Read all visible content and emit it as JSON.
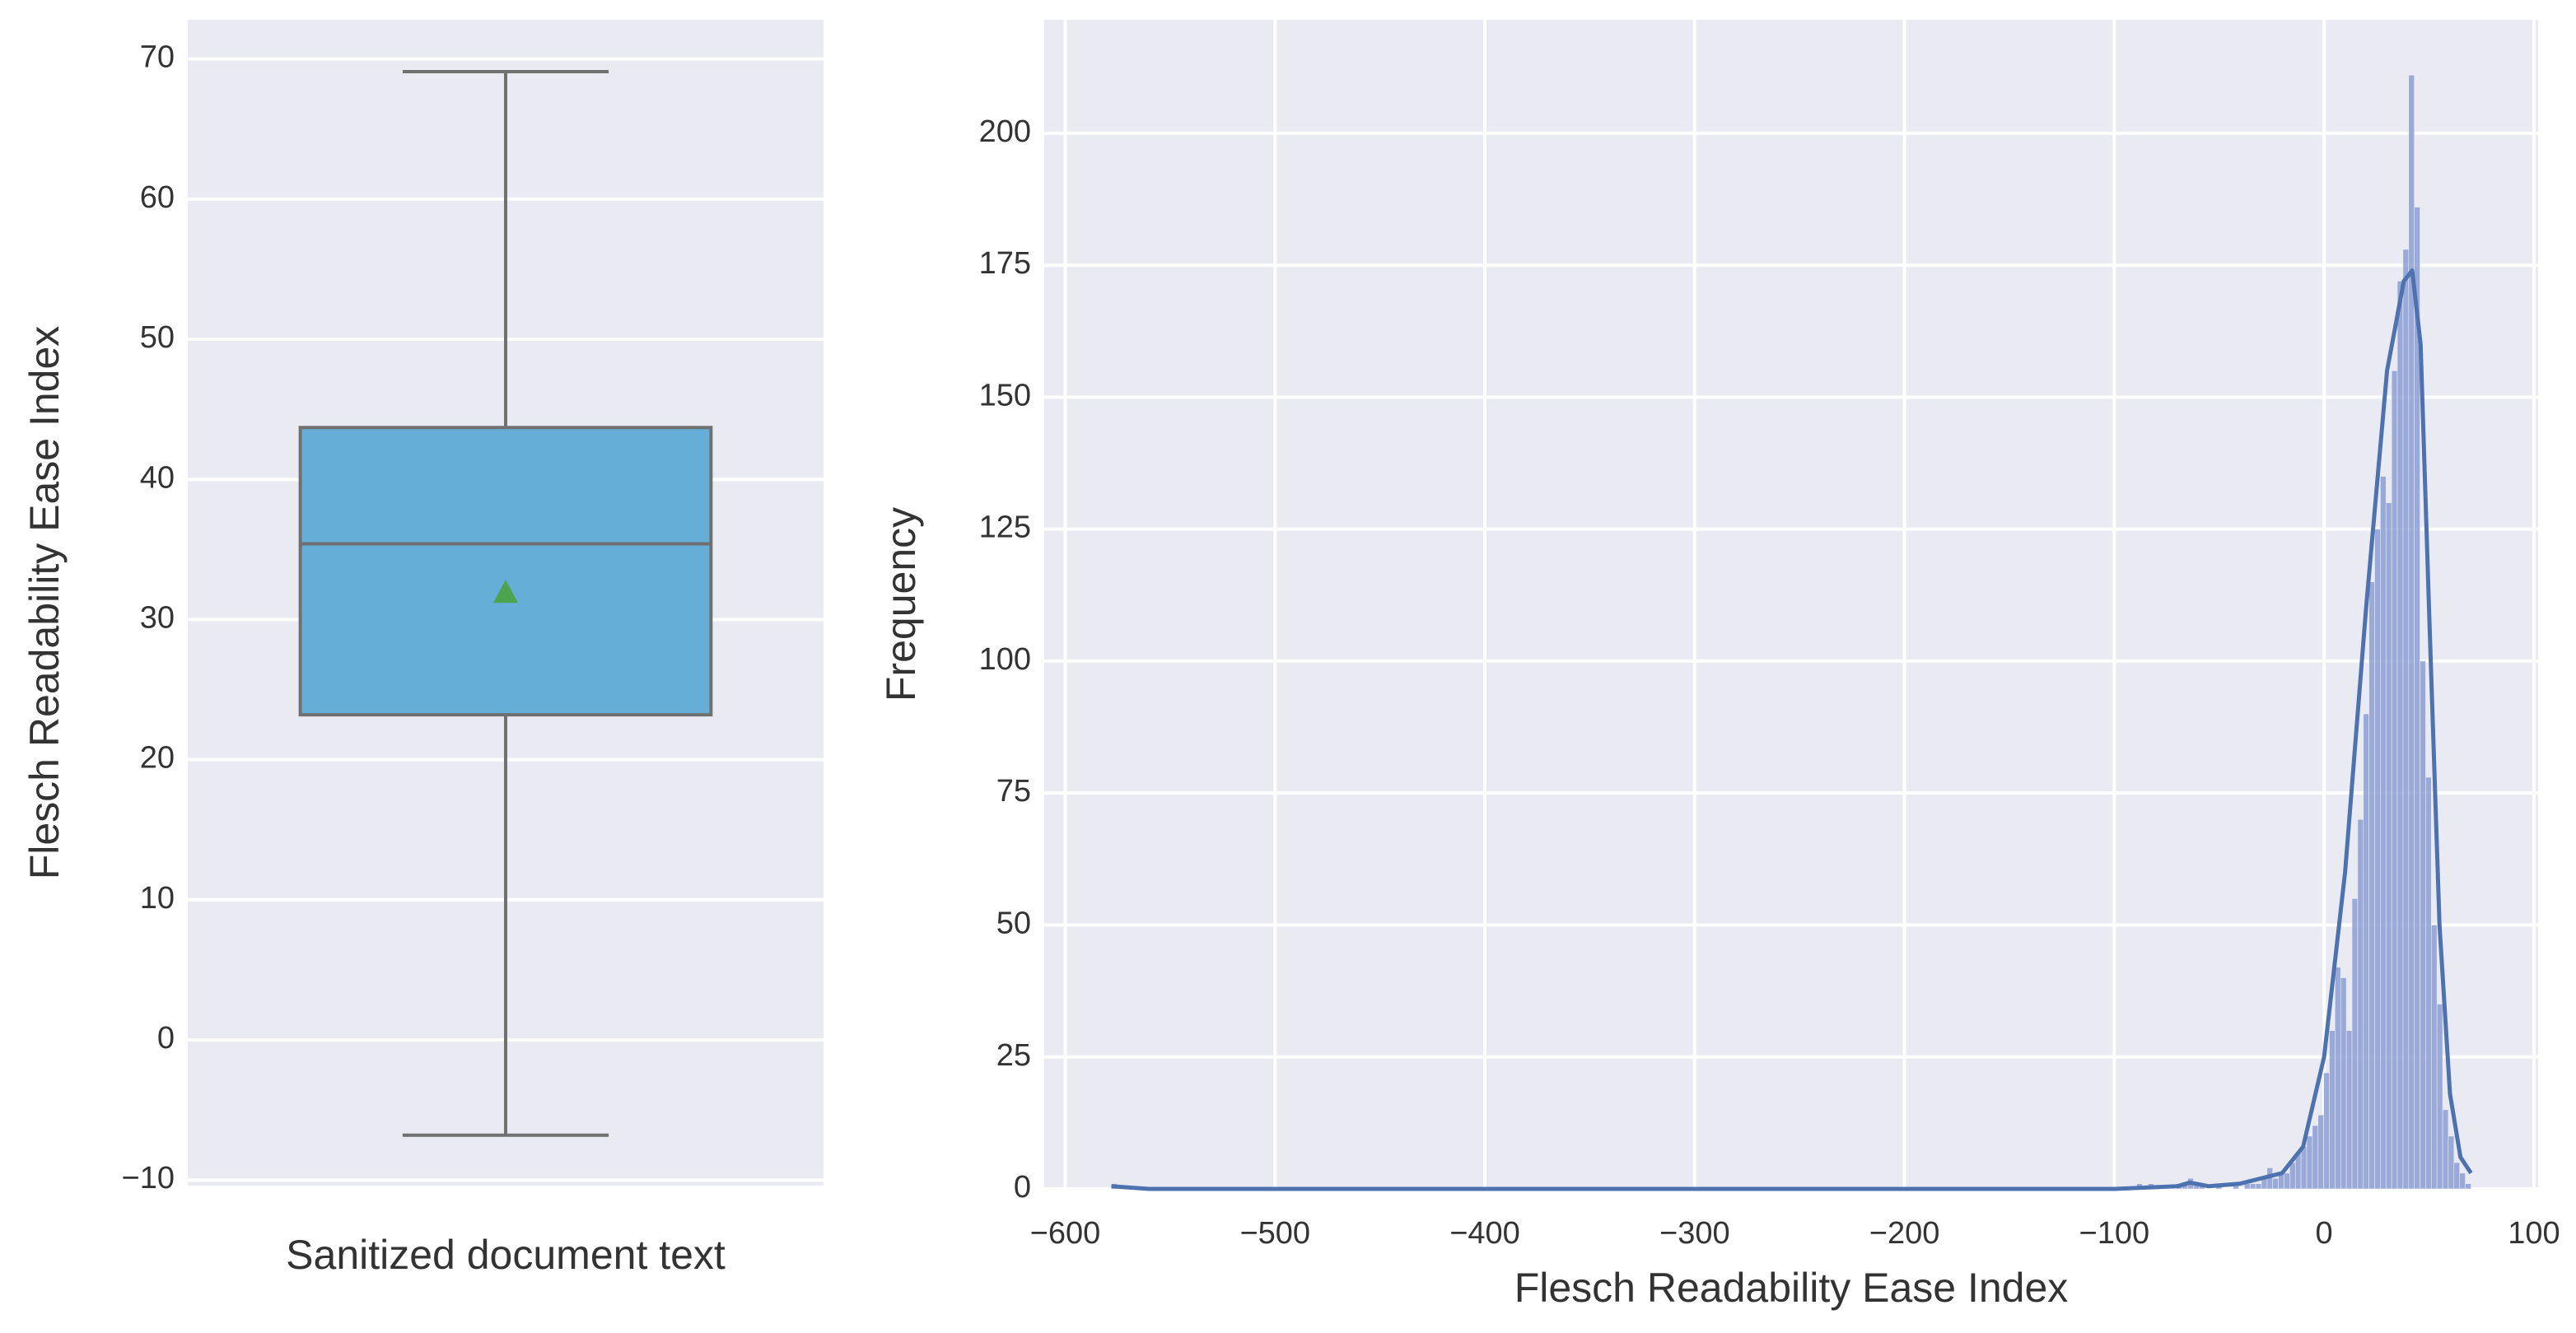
{
  "chart_data": [
    {
      "type": "box",
      "ylabel": "Flesch Readability Ease Index",
      "categories": [
        "Sanitized document text"
      ],
      "whislo": [
        -6.8
      ],
      "q1": [
        23.2
      ],
      "median": [
        35.4
      ],
      "q3": [
        43.7
      ],
      "whishi": [
        69.1
      ],
      "mean": [
        31.9
      ],
      "color": "#65aed8",
      "edge_color": "#707070",
      "mean_color": "#4ca54c",
      "ylim": [
        -10.4,
        72.8
      ],
      "yticks": [
        {
          "value": -10,
          "label": "−10"
        },
        0,
        10,
        20,
        30,
        40,
        50,
        60,
        70
      ],
      "grid": true
    },
    {
      "type": "histogram",
      "xlabel": "Flesch Readability Ease Index",
      "ylabel": "Frequency",
      "bins": [
        -578,
        -575.3,
        -572.6,
        -569.9,
        -567.2,
        -564.5,
        -561.8,
        -559.1,
        -556.4,
        -553.7,
        -551,
        -548.3,
        -545.6,
        -542.9,
        -540.2,
        -537.5,
        -534.8,
        -532.1,
        -529.4,
        -526.7,
        -524,
        -521.3,
        -518.6,
        -515.9,
        -513.2,
        -510.5,
        -507.8,
        -505.1,
        -502.4,
        -499.7,
        -497,
        -494.3,
        -491.6,
        -488.9,
        -486.2,
        -483.5,
        -480.8,
        -478.1,
        -475.4,
        -472.7,
        -470,
        -467.3,
        -464.6,
        -461.9,
        -459.2,
        -456.5,
        -453.8,
        -451.1,
        -448.4,
        -445.7,
        -443,
        -440.3,
        -437.6,
        -434.9,
        -432.2,
        -429.5,
        -426.8,
        -424.1,
        -421.4,
        -418.7,
        -416,
        -413.3,
        -410.6,
        -407.9,
        -405.2,
        -402.5,
        -399.8,
        -397.1,
        -394.4,
        -391.7,
        -389,
        -386.3,
        -383.6,
        -380.9,
        -378.2,
        -375.5,
        -372.8,
        -370.1,
        -367.4,
        -364.7,
        -362,
        -359.3,
        -356.6,
        -353.9,
        -351.2,
        -348.5,
        -345.8,
        -343.1,
        -340.4,
        -337.7,
        -335,
        -332.3,
        -329.6,
        -326.9,
        -324.2,
        -321.5,
        -318.8,
        -316.1,
        -313.4,
        -310.7,
        -308,
        -305.3,
        -302.6,
        -299.9,
        -297.2,
        -294.5,
        -291.8,
        -289.1,
        -286.4,
        -283.7,
        -281,
        -278.3,
        -275.6,
        -272.9,
        -270.2,
        -267.5,
        -264.8,
        -262.1,
        -259.4,
        -256.7,
        -254,
        -251.3,
        -248.6,
        -245.9,
        -243.2,
        -240.5,
        -237.8,
        -235.1,
        -232.4,
        -229.7,
        -227,
        -224.3,
        -221.6,
        -218.9,
        -216.2,
        -213.5,
        -210.8,
        -208.1,
        -205.4,
        -202.7,
        -200,
        -197.3,
        -194.6,
        -191.9,
        -189.2,
        -186.5,
        -183.8,
        -181.1,
        -178.4,
        -175.7,
        -173,
        -170.3,
        -167.6,
        -164.9,
        -162.2,
        -159.5,
        -156.8,
        -154.1,
        -151.4,
        -148.7,
        -146,
        -143.3,
        -140.6,
        -137.9,
        -135.2,
        -132.5,
        -129.8,
        -127.1,
        -124.4,
        -121.7,
        -119,
        -116.3,
        -113.6,
        -110.9,
        -108.2,
        -105.5,
        -102.8,
        -100.1,
        -97.4,
        -94.7,
        -92,
        -89.3,
        -86.6,
        -83.9,
        -81.2,
        -78.5,
        -75.8,
        -73.1,
        -70.4,
        -67.7,
        -65,
        -62.3,
        -59.6,
        -56.9,
        -54.2,
        -51.5,
        -48.8,
        -46.1,
        -43.4,
        -40.7,
        -38,
        -35.3,
        -32.6,
        -29.9,
        -27.2,
        -24.5,
        -21.8,
        -19.1,
        -16.4,
        -13.7,
        -11,
        -8.3,
        -5.6,
        -2.9,
        -0.2,
        2.5,
        5.2,
        7.9,
        10.6,
        13.3,
        16,
        18.7,
        21.4,
        24.1,
        26.8,
        29.5,
        32.2,
        34.9,
        37.6,
        40.3,
        43,
        45.7,
        48.4,
        51.1,
        53.8,
        56.5,
        59.2,
        61.9,
        64.6,
        67.3,
        70
      ],
      "counts": [
        1,
        0,
        0,
        0,
        0,
        0,
        0,
        0,
        0,
        0,
        0,
        0,
        0,
        0,
        0,
        0,
        0,
        0,
        0,
        0,
        0,
        0,
        0,
        0,
        0,
        0,
        0,
        0,
        0,
        0,
        0,
        0,
        0,
        0,
        0,
        0,
        0,
        0,
        0,
        0,
        0,
        0,
        0,
        0,
        0,
        0,
        0,
        0,
        0,
        0,
        0,
        0,
        0,
        0,
        0,
        0,
        0,
        0,
        0,
        0,
        0,
        0,
        0,
        0,
        0,
        0,
        0,
        0,
        0,
        0,
        0,
        0,
        0,
        0,
        0,
        0,
        0,
        0,
        0,
        0,
        0,
        0,
        0,
        0,
        0,
        0,
        0,
        0,
        0,
        0,
        0,
        0,
        0,
        0,
        0,
        0,
        0,
        0,
        0,
        0,
        0,
        0,
        0,
        0,
        0,
        0,
        0,
        0,
        0,
        0,
        0,
        0,
        0,
        0,
        0,
        0,
        0,
        0,
        0,
        0,
        0,
        0,
        0,
        0,
        0,
        0,
        0,
        0,
        0,
        0,
        0,
        0,
        0,
        0,
        0,
        0,
        0,
        0,
        0,
        0,
        0,
        0,
        0,
        0,
        0,
        0,
        0,
        0,
        0,
        0,
        0,
        0,
        0,
        0,
        0,
        0,
        0,
        0,
        0,
        0,
        0,
        0,
        0,
        0,
        0,
        0,
        0,
        0,
        0,
        0,
        0,
        0,
        0,
        0,
        0,
        0,
        0,
        0,
        0,
        0,
        0,
        1,
        0,
        1,
        0,
        0,
        0,
        0,
        1,
        1,
        2,
        1,
        1,
        0,
        0,
        1,
        0,
        0,
        1,
        0,
        1,
        1,
        1,
        2,
        4,
        2,
        3,
        3,
        5,
        7,
        8,
        10,
        12,
        14,
        22,
        30,
        42,
        40,
        30,
        55,
        70,
        90,
        115,
        125,
        135,
        130,
        155,
        172,
        178,
        211,
        186,
        100,
        78,
        50,
        35,
        15,
        10,
        5,
        3,
        1
      ],
      "color": "#8c9fd4",
      "kde": {
        "x": [
          -578,
          -560,
          -100,
          -70,
          -64,
          -55,
          -40,
          -20,
          -10,
          0,
          10,
          20,
          30,
          38,
          42,
          46,
          50,
          55,
          60,
          65,
          70
        ],
        "y": [
          0.5,
          0,
          0,
          0.5,
          1.2,
          0.5,
          1,
          3,
          8,
          25,
          60,
          110,
          155,
          172,
          174,
          160,
          110,
          50,
          18,
          6,
          3
        ]
      },
      "line_color": "#4c72b0",
      "xlim": [
        -610,
        102
      ],
      "xticks": [
        {
          "value": -600,
          "label": "−600"
        },
        {
          "value": -500,
          "label": "−500"
        },
        {
          "value": -400,
          "label": "−400"
        },
        {
          "value": -300,
          "label": "−300"
        },
        {
          "value": -200,
          "label": "−200"
        },
        {
          "value": -100,
          "label": "−100"
        },
        0,
        100
      ],
      "ylim": [
        0,
        221.5
      ],
      "yticks": [
        0,
        25,
        50,
        75,
        100,
        125,
        150,
        175,
        200
      ],
      "grid": true
    }
  ]
}
